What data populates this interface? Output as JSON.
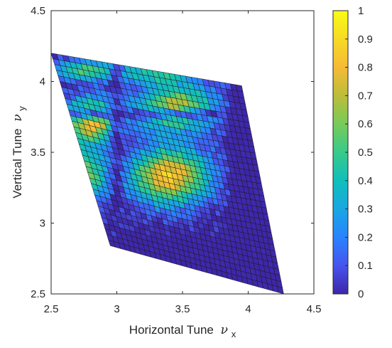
{
  "chart_data": {
    "type": "heatmap",
    "xlabel": "Horizontal Tune",
    "xlabel_symbol": "ν",
    "xlabel_subscript": "x",
    "ylabel": "Vertical Tune",
    "ylabel_symbol": "ν",
    "ylabel_subscript": "y",
    "xlim": [
      2.5,
      4.5
    ],
    "ylim": [
      2.5,
      4.5
    ],
    "xticks": [
      "2.5",
      "3",
      "3.5",
      "4",
      "4.5"
    ],
    "yticks": [
      "2.5",
      "3",
      "3.5",
      "4",
      "4.5"
    ],
    "colorbar": {
      "range": [
        0,
        1
      ],
      "ticks": [
        "0",
        "0.1",
        "0.2",
        "0.3",
        "0.4",
        "0.5",
        "0.6",
        "0.7",
        "0.8",
        "0.9",
        "1"
      ],
      "colormap": "parula"
    },
    "grid": false,
    "mesh_corners_data_units": {
      "top_left": [
        2.5,
        4.2
      ],
      "top_right": [
        3.95,
        3.97
      ],
      "bottom_left": [
        2.95,
        2.84
      ],
      "bottom_right": [
        4.27,
        2.5
      ]
    },
    "mesh_rows": 34,
    "mesh_cols": 34,
    "resonance_lines": {
      "note": "low values along nu_x≈3.0 and nu_y≈3.77",
      "nu_x": 3.0,
      "nu_y": 3.77
    },
    "high_regions": [
      {
        "center": [
          2.8,
          3.72
        ],
        "peak": 0.82
      },
      {
        "center": [
          2.75,
          3.33
        ],
        "peak": 0.65
      },
      {
        "center": [
          3.4,
          3.35
        ],
        "peak": 0.85
      },
      {
        "center": [
          3.45,
          3.82
        ],
        "peak": 0.7
      }
    ]
  }
}
